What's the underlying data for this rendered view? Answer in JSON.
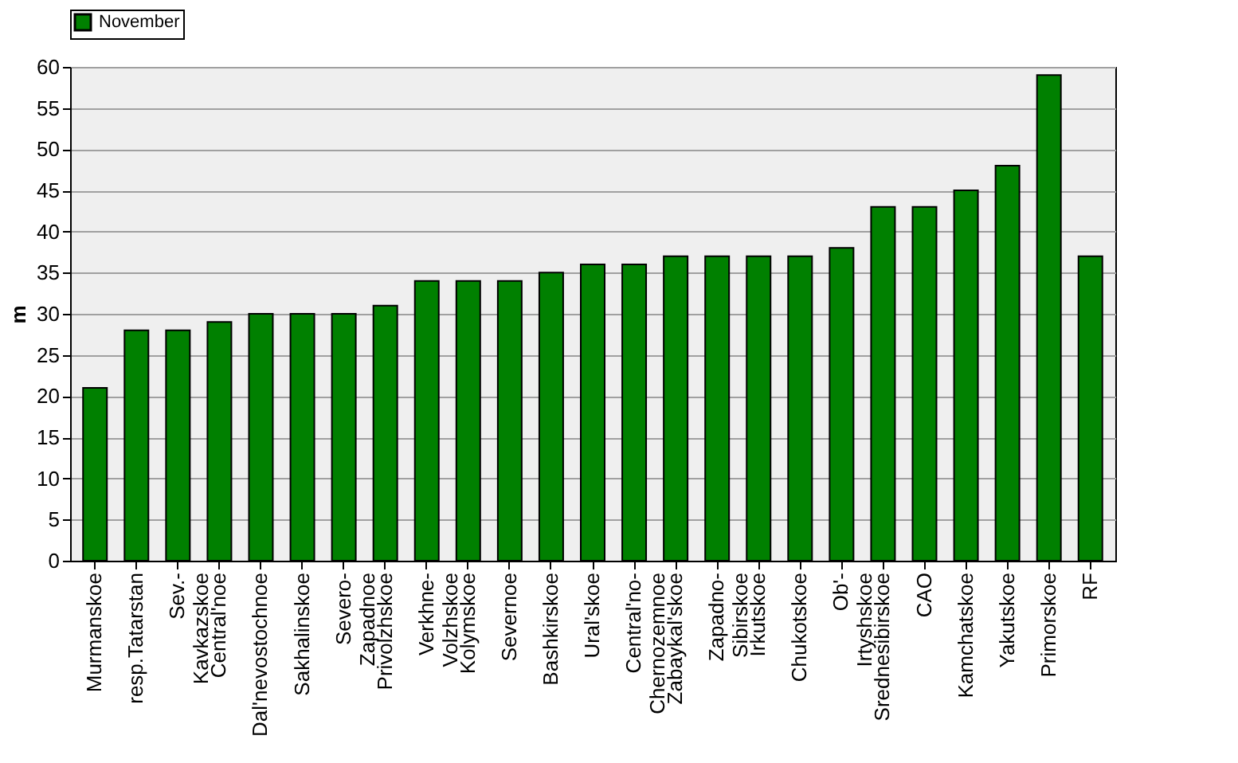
{
  "chart_data": {
    "type": "bar",
    "ylabel": "m",
    "categories": [
      "Murmanskoe",
      "resp.Tatarstan",
      "Sev.-\nKavkazskoe",
      "Central'noe",
      "Dal'nevostochnoe",
      "Sakhalinskoe",
      "Severo-\nZapadnoe",
      "Privolzhskoe",
      "Verkhne-\nVolzhskoe",
      "Kolymskoe",
      "Severnoe",
      "Bashkirskoe",
      "Ural'skoe",
      "Central'no-\nChernozemnoe",
      "Zabaykal'skoe",
      "Zapadno-\nSibirskoe",
      "Irkutskoe",
      "Chukotskoe",
      "Ob'-\nIrtyshskoe",
      "Srednesibirskoe",
      "CAO",
      "Kamchatskoe",
      "Yakutskoe",
      "Primorskoe",
      "RF"
    ],
    "series": [
      {
        "name": "November",
        "color": "#008000",
        "values": [
          21,
          28,
          28,
          29,
          30,
          30,
          30,
          31,
          34,
          34,
          34,
          35,
          36,
          36,
          37,
          37,
          37,
          37,
          38,
          43,
          43,
          45,
          48,
          59,
          37
        ]
      }
    ],
    "ylim": [
      0,
      60
    ],
    "yticks": [
      0,
      5,
      10,
      15,
      20,
      25,
      30,
      35,
      40,
      45,
      50,
      55,
      60
    ],
    "grid": "y",
    "legend": "top"
  }
}
